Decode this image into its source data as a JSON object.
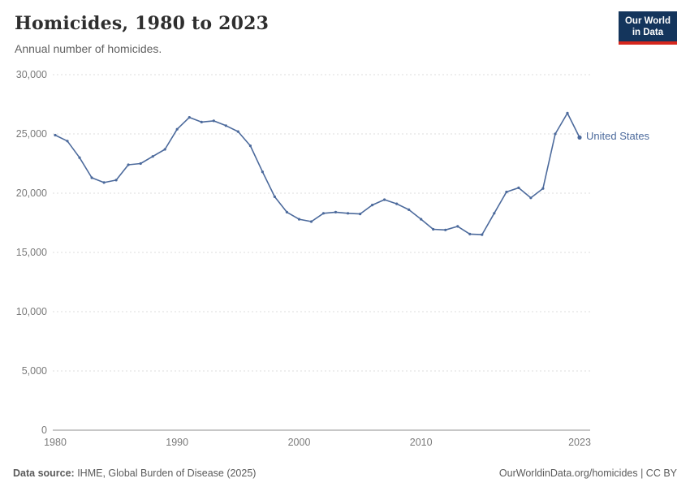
{
  "header": {
    "title": "Homicides, 1980 to 2023",
    "subtitle": "Annual number of homicides."
  },
  "logo": {
    "line1": "Our World",
    "line2": "in Data",
    "bg_color": "#14355c",
    "accent_color": "#d6271d"
  },
  "footer": {
    "source_label": "Data source:",
    "source_text": " IHME, Global Burden of Disease (2025)",
    "right_text": "OurWorldinData.org/homicides | CC BY"
  },
  "chart_data": {
    "type": "line",
    "title": "Homicides, 1980 to 2023",
    "subtitle": "Annual number of homicides.",
    "xlabel": "",
    "ylabel": "",
    "ylim": [
      0,
      30000
    ],
    "yticks": [
      0,
      5000,
      10000,
      15000,
      20000,
      25000,
      30000
    ],
    "xticks": [
      1980,
      1990,
      2000,
      2010,
      2023
    ],
    "grid": "horizontal-dashed",
    "legend_position": "end-of-line-label",
    "x": [
      1980,
      1981,
      1982,
      1983,
      1984,
      1985,
      1986,
      1987,
      1988,
      1989,
      1990,
      1991,
      1992,
      1993,
      1994,
      1995,
      1996,
      1997,
      1998,
      1999,
      2000,
      2001,
      2002,
      2003,
      2004,
      2005,
      2006,
      2007,
      2008,
      2009,
      2010,
      2011,
      2012,
      2013,
      2014,
      2015,
      2016,
      2017,
      2018,
      2019,
      2020,
      2021,
      2022,
      2023
    ],
    "series": [
      {
        "name": "United States",
        "color": "#4C6A9C",
        "values": [
          24900,
          24400,
          23000,
          21300,
          20900,
          21100,
          22400,
          22500,
          23100,
          23700,
          25400,
          26400,
          26000,
          26100,
          25700,
          25200,
          24000,
          21800,
          19700,
          18400,
          17800,
          17600,
          18300,
          18400,
          18300,
          18250,
          19000,
          19450,
          19100,
          18600,
          17800,
          16950,
          16900,
          17200,
          16550,
          16500,
          18300,
          20100,
          20450,
          19600,
          20400,
          25000,
          26750,
          24700
        ]
      }
    ],
    "axis_color": "#8f8f8f",
    "gridline_color": "#dcdcdc",
    "tick_label_color": "#7a7a7a"
  }
}
